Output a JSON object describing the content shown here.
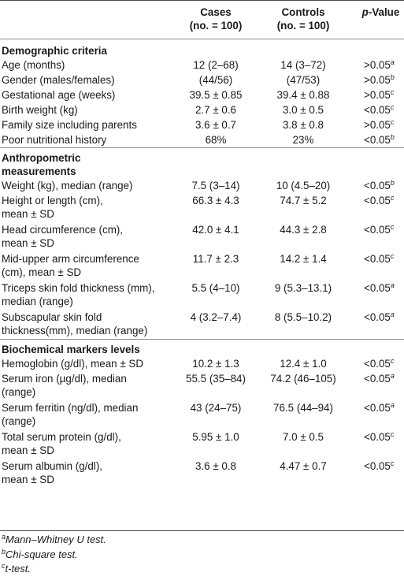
{
  "header": {
    "col1": "",
    "col2_line1": "Cases",
    "col2_line2": "(no. = 100)",
    "col3_line1": "Controls",
    "col3_line2": "(no. = 100)",
    "col4_p": "p",
    "col4_rest": "-Value"
  },
  "sections": [
    {
      "title": "Demographic criteria",
      "rows": [
        {
          "label": "Age (months)",
          "cases": "12 (2–68)",
          "controls": "14 (3–72)",
          "p": ">0.05",
          "sup": "a"
        },
        {
          "label": "Gender (males/females)",
          "cases": "(44/56)",
          "controls": "(47/53)",
          "p": ">0.05",
          "sup": "b"
        },
        {
          "label": "Gestational age (weeks)",
          "cases": "39.5 ± 0.85",
          "controls": "39.4 ± 0.88",
          "p": ">0.05",
          "sup": "c"
        },
        {
          "label": "Birth weight (kg)",
          "cases": "2.7 ± 0.6",
          "controls": "3.0 ± 0.5",
          "p": "<0.05",
          "sup": "c"
        },
        {
          "label": "Family size including parents",
          "cases": "3.6 ± 0.7",
          "controls": "3.8 ± 0.8",
          "p": ">0.05",
          "sup": "c"
        },
        {
          "label": "Poor nutritional history",
          "cases": "68%",
          "controls": "23%",
          "p": "<0.05",
          "sup": "b"
        }
      ]
    },
    {
      "title_line1": "Anthropometric",
      "title_line2": "measurements",
      "rows": [
        {
          "label": "Weight (kg), median (range)",
          "cases": "7.5 (3–14)",
          "controls": "10 (4.5–20)",
          "p": "<0.05",
          "sup": "b"
        },
        {
          "label": "Height or length (cm),",
          "label2": "mean ± SD",
          "cases": "66.3 ± 4.3",
          "controls": "74.7 ± 5.2",
          "p": "<0.05",
          "sup": "c"
        },
        {
          "label": "Head circumference (cm),",
          "label2": "mean ± SD",
          "cases": "42.0 ± 4.1",
          "controls": "44.3 ± 2.8",
          "p": "<0.05",
          "sup": "c"
        },
        {
          "label": "Mid-upper arm circumference",
          "label2": "(cm), mean ± SD",
          "cases": "11.7 ± 2.3",
          "controls": "14.2 ± 1.4",
          "p": "<0.05",
          "sup": "c"
        },
        {
          "label": "Triceps skin fold thickness (mm),",
          "label2": "median (range)",
          "cases": "5.5 (4–10)",
          "controls": "9 (5.3–13.1)",
          "p": "<0.05",
          "sup": "a"
        },
        {
          "label": "Subscapular skin fold",
          "label2": "thickness(mm), median (range)",
          "cases": "4 (3.2–7.4)",
          "controls": "8 (5.5–10.2)",
          "p": "<0.05",
          "sup": "a"
        }
      ]
    },
    {
      "title": "Biochemical markers levels",
      "rows": [
        {
          "label": "Hemoglobin (g/dl), mean ± SD",
          "cases": "10.2 ± 1.3",
          "controls": "12.4 ± 1.0",
          "p": "<0.05",
          "sup": "c"
        },
        {
          "label": "Serum iron (µg/dl), median",
          "label2": "(range)",
          "cases": "55.5 (35–84)",
          "controls": "74.2 (46–105)",
          "p": "<0.05",
          "sup": "a"
        },
        {
          "label": "Serum ferritin (ng/dl), median",
          "label2": "(range)",
          "cases": "43 (24–75)",
          "controls": "76.5 (44–94)",
          "p": "<0.05",
          "sup": "a"
        },
        {
          "label": "Total serum protein (g/dl),",
          "label2": "mean ± SD",
          "cases": "5.95 ± 1.0",
          "controls": "7.0 ± 0.5",
          "p": "<0.05",
          "sup": "c"
        },
        {
          "label": "Serum albumin (g/dl),",
          "label2": "mean ± SD",
          "cases": "3.6 ± 0.8",
          "controls": "4.47 ± 0.7",
          "p": "<0.05",
          "sup": "c"
        }
      ]
    }
  ],
  "notes": [
    {
      "sup": "a",
      "text": "Mann–Whitney U test."
    },
    {
      "sup": "b",
      "text": "Chi-square test."
    },
    {
      "sup": "c",
      "text": "t-test."
    }
  ]
}
